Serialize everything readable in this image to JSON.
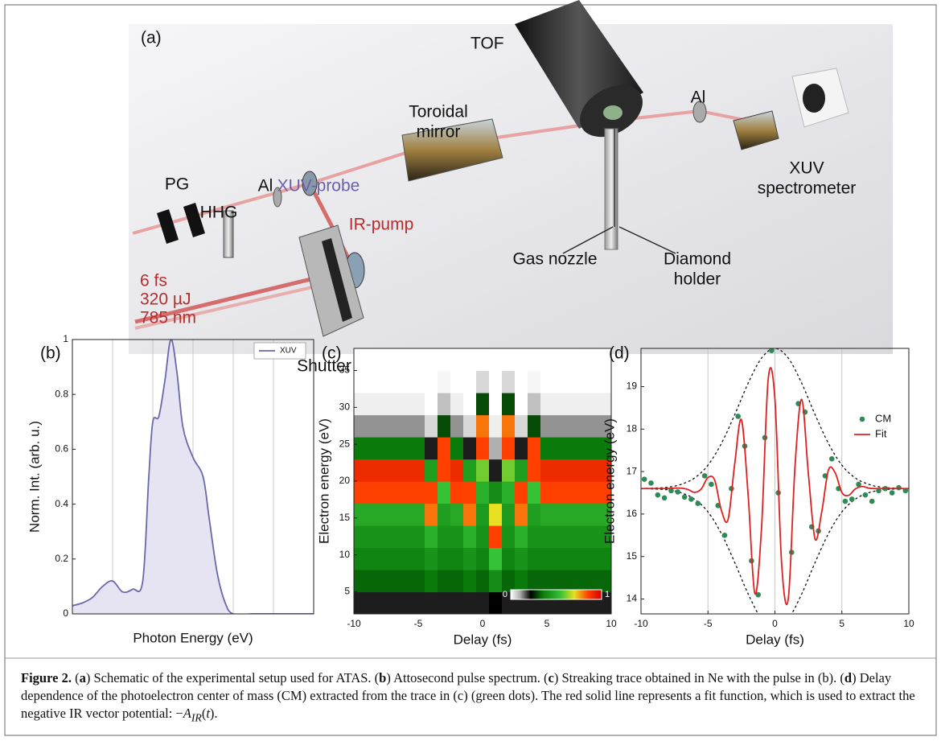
{
  "figure": {
    "panel": "(a)",
    "labels": {
      "tof": "TOF",
      "toroidal": [
        "Toroidal",
        "mirror"
      ],
      "al_right": "Al",
      "spectrometer": [
        "XUV",
        "spectrometer"
      ],
      "pg": "PG",
      "hhg": "HHG",
      "al_left": "Al",
      "xuv_probe": "XUV-probe",
      "ir_pump": "IR-pump",
      "laser": [
        "6 fs",
        "320 µJ",
        "785 nm"
      ],
      "gas_nozzle": "Gas nozzle",
      "holder": [
        "Diamond",
        "holder"
      ],
      "shutter": "Shutter"
    }
  },
  "chart_data": [
    {
      "type": "line",
      "panel": "(b)",
      "xlabel": "Photon Energy (eV)",
      "ylabel": "Norm. Int. (arb. u.)",
      "xlim": [
        0,
        6
      ],
      "xgrid": [
        1,
        2,
        3,
        4,
        5
      ],
      "ylim": [
        0,
        1
      ],
      "yticks": [
        0,
        0.2,
        0.4,
        0.6,
        0.8,
        1
      ],
      "legend": "upper right",
      "legend_box": true,
      "series": [
        {
          "name": "XUV",
          "color": "#6b68a8",
          "fill": "#e6e4f3",
          "mode": "line",
          "x": [
            0,
            0.25,
            0.5,
            0.75,
            1,
            1.25,
            1.5,
            1.75,
            1.9,
            2,
            2.15,
            2.3,
            2.45,
            2.6,
            2.75,
            3,
            3.25,
            3.4,
            3.6,
            3.8,
            4,
            4.5,
            5,
            6
          ],
          "values": [
            0.03,
            0.04,
            0.06,
            0.1,
            0.12,
            0.08,
            0.09,
            0.12,
            0.5,
            0.7,
            0.72,
            0.85,
            1,
            0.88,
            0.68,
            0.57,
            0.5,
            0.35,
            0.15,
            0.04,
            0,
            0,
            0,
            0
          ]
        }
      ]
    },
    {
      "type": "heatmap",
      "panel": "(c)",
      "xlabel": "Delay (fs)",
      "ylabel": "Electron energy (eV)",
      "xlim": [
        -10,
        10
      ],
      "xticks": [
        -10,
        -5,
        0,
        5,
        10
      ],
      "ylim": [
        2,
        38
      ],
      "yticks": [
        0,
        5,
        10,
        15,
        20,
        25,
        30,
        35
      ],
      "colorscale": [
        [
          0,
          "#ffffff"
        ],
        [
          0.1,
          "#b0b0b0"
        ],
        [
          0.22,
          "#000000"
        ],
        [
          0.35,
          "#0a7a0a"
        ],
        [
          0.55,
          "#36c236"
        ],
        [
          0.7,
          "#e8e020"
        ],
        [
          0.85,
          "#ff4000"
        ],
        [
          1,
          "#d00000"
        ]
      ],
      "cbar_ticks": [
        0,
        1
      ],
      "x": [
        -10,
        -9,
        -8,
        -7,
        -6,
        -5,
        -4,
        -3,
        -2,
        -1,
        0,
        1,
        2,
        3,
        4,
        5,
        6,
        7,
        8,
        9,
        10
      ],
      "y": [
        3.5,
        6.5,
        9.5,
        12.5,
        15.5,
        18.5,
        21.5,
        24.5,
        27.5,
        30.5,
        33.5,
        36.5
      ],
      "z": [
        [
          0.2,
          0.2,
          0.2,
          0.2,
          0.2,
          0.2,
          0.2,
          0.2,
          0.2,
          0.2,
          0.2,
          0.22,
          0.2,
          0.2,
          0.2,
          0.2,
          0.2,
          0.2,
          0.2,
          0.2,
          0.2
        ],
        [
          0.33,
          0.33,
          0.33,
          0.33,
          0.33,
          0.33,
          0.35,
          0.33,
          0.33,
          0.35,
          0.33,
          0.4,
          0.33,
          0.35,
          0.33,
          0.33,
          0.33,
          0.33,
          0.33,
          0.33,
          0.33
        ],
        [
          0.38,
          0.38,
          0.38,
          0.38,
          0.38,
          0.38,
          0.42,
          0.38,
          0.38,
          0.42,
          0.38,
          0.55,
          0.38,
          0.42,
          0.38,
          0.38,
          0.38,
          0.38,
          0.38,
          0.38,
          0.38
        ],
        [
          0.42,
          0.42,
          0.42,
          0.42,
          0.42,
          0.42,
          0.5,
          0.42,
          0.42,
          0.5,
          0.42,
          0.85,
          0.42,
          0.5,
          0.42,
          0.42,
          0.42,
          0.42,
          0.42,
          0.42,
          0.42
        ],
        [
          0.48,
          0.48,
          0.48,
          0.48,
          0.48,
          0.48,
          0.8,
          0.45,
          0.48,
          0.8,
          0.44,
          0.7,
          0.44,
          0.8,
          0.45,
          0.48,
          0.48,
          0.48,
          0.48,
          0.48,
          0.48
        ],
        [
          0.85,
          0.85,
          0.85,
          0.85,
          0.85,
          0.85,
          0.85,
          0.55,
          0.85,
          0.85,
          0.5,
          0.4,
          0.5,
          0.85,
          0.55,
          0.85,
          0.85,
          0.85,
          0.85,
          0.85,
          0.85
        ],
        [
          0.9,
          0.9,
          0.9,
          0.9,
          0.9,
          0.9,
          0.45,
          0.85,
          0.9,
          0.45,
          0.6,
          0.2,
          0.6,
          0.45,
          0.85,
          0.9,
          0.9,
          0.9,
          0.9,
          0.9,
          0.9
        ],
        [
          0.35,
          0.35,
          0.35,
          0.35,
          0.35,
          0.35,
          0.2,
          0.85,
          0.35,
          0.2,
          0.85,
          0.1,
          0.85,
          0.2,
          0.85,
          0.35,
          0.35,
          0.35,
          0.35,
          0.35,
          0.35
        ],
        [
          0.12,
          0.12,
          0.12,
          0.12,
          0.12,
          0.12,
          0.05,
          0.3,
          0.12,
          0.05,
          0.8,
          0.02,
          0.8,
          0.05,
          0.3,
          0.12,
          0.12,
          0.12,
          0.12,
          0.12,
          0.12
        ],
        [
          0.02,
          0.02,
          0.02,
          0.02,
          0.02,
          0.02,
          0,
          0.08,
          0.02,
          0,
          0.3,
          0,
          0.3,
          0,
          0.08,
          0.02,
          0.02,
          0.02,
          0.02,
          0.02,
          0.02
        ],
        [
          0,
          0,
          0,
          0,
          0,
          0,
          0,
          0.01,
          0,
          0,
          0.05,
          0,
          0.05,
          0,
          0.01,
          0,
          0,
          0,
          0,
          0,
          0
        ],
        [
          0,
          0,
          0,
          0,
          0,
          0,
          0,
          0,
          0,
          0,
          0,
          0,
          0,
          0,
          0,
          0,
          0,
          0,
          0,
          0,
          0
        ]
      ]
    },
    {
      "type": "line",
      "panel": "(d)",
      "xlabel": "Delay (fs)",
      "ylabel": "Electron energy (eV)",
      "xlim": [
        -10,
        10
      ],
      "xticks": [
        -10,
        -5,
        0,
        5,
        10
      ],
      "ylim": [
        13.65,
        19.9
      ],
      "yticks": [
        14,
        15,
        16,
        17,
        18,
        19
      ],
      "grid": "x",
      "legend": "upper right",
      "legend_box": false,
      "envelope": {
        "x": [
          -10,
          -9,
          -8,
          -7,
          -6,
          -5,
          -4,
          -3,
          -2,
          -1,
          0,
          1,
          2,
          3,
          4,
          5,
          6,
          7,
          8,
          9,
          10
        ],
        "upper": [
          16.6,
          16.61,
          16.63,
          16.7,
          16.85,
          17.15,
          17.66,
          18.34,
          19.08,
          19.67,
          19.9,
          19.67,
          19.08,
          18.34,
          17.66,
          17.15,
          16.85,
          16.7,
          16.63,
          16.61,
          16.6
        ],
        "lower": [
          16.6,
          16.59,
          16.57,
          16.5,
          16.35,
          16.05,
          15.54,
          14.86,
          14.12,
          13.53,
          13.3,
          13.53,
          14.12,
          14.86,
          15.54,
          16.05,
          16.35,
          16.5,
          16.57,
          16.59,
          16.6
        ]
      },
      "series": [
        {
          "name": "CM",
          "color": "#2e8b57",
          "mode": "markers",
          "x": [
            -9.75,
            -9.25,
            -8.75,
            -8.25,
            -7.75,
            -7.25,
            -6.75,
            -6.25,
            -5.75,
            -5.25,
            -4.75,
            -4.25,
            -3.75,
            -3.25,
            -2.75,
            -2.25,
            -1.75,
            -1.25,
            -0.75,
            -0.25,
            0.25,
            0.75,
            1.25,
            1.75,
            2.25,
            2.75,
            3.25,
            3.75,
            4.25,
            4.75,
            5.25,
            5.75,
            6.25,
            6.75,
            7.25,
            7.75,
            8.25,
            8.75,
            9.25,
            9.75
          ],
          "values": [
            16.82,
            16.73,
            16.45,
            16.38,
            16.55,
            16.52,
            16.4,
            16.35,
            16.25,
            16.9,
            16.7,
            16.2,
            15.5,
            16.6,
            18.3,
            17.6,
            14.9,
            14.1,
            17.8,
            19.85,
            16.5,
            13.5,
            15.1,
            18.6,
            18.4,
            15.7,
            15.6,
            16.9,
            17.3,
            16.6,
            16.3,
            16.35,
            16.7,
            16.45,
            16.3,
            16.55,
            16.6,
            16.5,
            16.62,
            16.55
          ]
        },
        {
          "name": "Fit",
          "color": "#e02020",
          "mode": "line",
          "x": [
            -10,
            -9.5,
            -9,
            -8.5,
            -8,
            -7.5,
            -7,
            -6.5,
            -6,
            -5.5,
            -5,
            -4.5,
            -4,
            -3.5,
            -3,
            -2.5,
            -2,
            -1.5,
            -1,
            -0.5,
            0,
            0.5,
            1,
            1.5,
            2,
            2.5,
            3,
            3.5,
            4,
            4.5,
            5,
            5.5,
            6,
            6.5,
            7,
            7.5,
            8,
            8.5,
            9,
            9.5,
            10
          ],
          "values": [
            16.6,
            16.6,
            16.6,
            16.6,
            16.6,
            16.61,
            16.61,
            16.58,
            16.51,
            16.59,
            16.86,
            16.8,
            16.09,
            15.87,
            17.19,
            18.22,
            16.45,
            14.13,
            15.67,
            19.18,
            18.71,
            14.84,
            14.01,
            17.12,
            18.7,
            16.94,
            15.41,
            16.06,
            17.04,
            16.97,
            16.51,
            16.44,
            16.59,
            16.65,
            16.61,
            16.6,
            16.6,
            16.6,
            16.6,
            16.6,
            16.6
          ]
        }
      ]
    }
  ],
  "caption": {
    "segments": [
      "Figure 2.",
      " (",
      "a",
      ") Schematic of the experimental setup used for ATAS. (",
      "b",
      ") Attosecond pulse spectrum. (",
      "c",
      ") Streaking trace obtained in Ne with the pulse in (b). (",
      "d",
      ") Delay dependence of the photoelectron center of mass (CM) extracted from the trace in (c) (green dots). The red solid line represents a fit function, which is used to extract the negative IR vector potential: −",
      "A",
      "IR",
      "(",
      "t",
      ")."
    ]
  }
}
